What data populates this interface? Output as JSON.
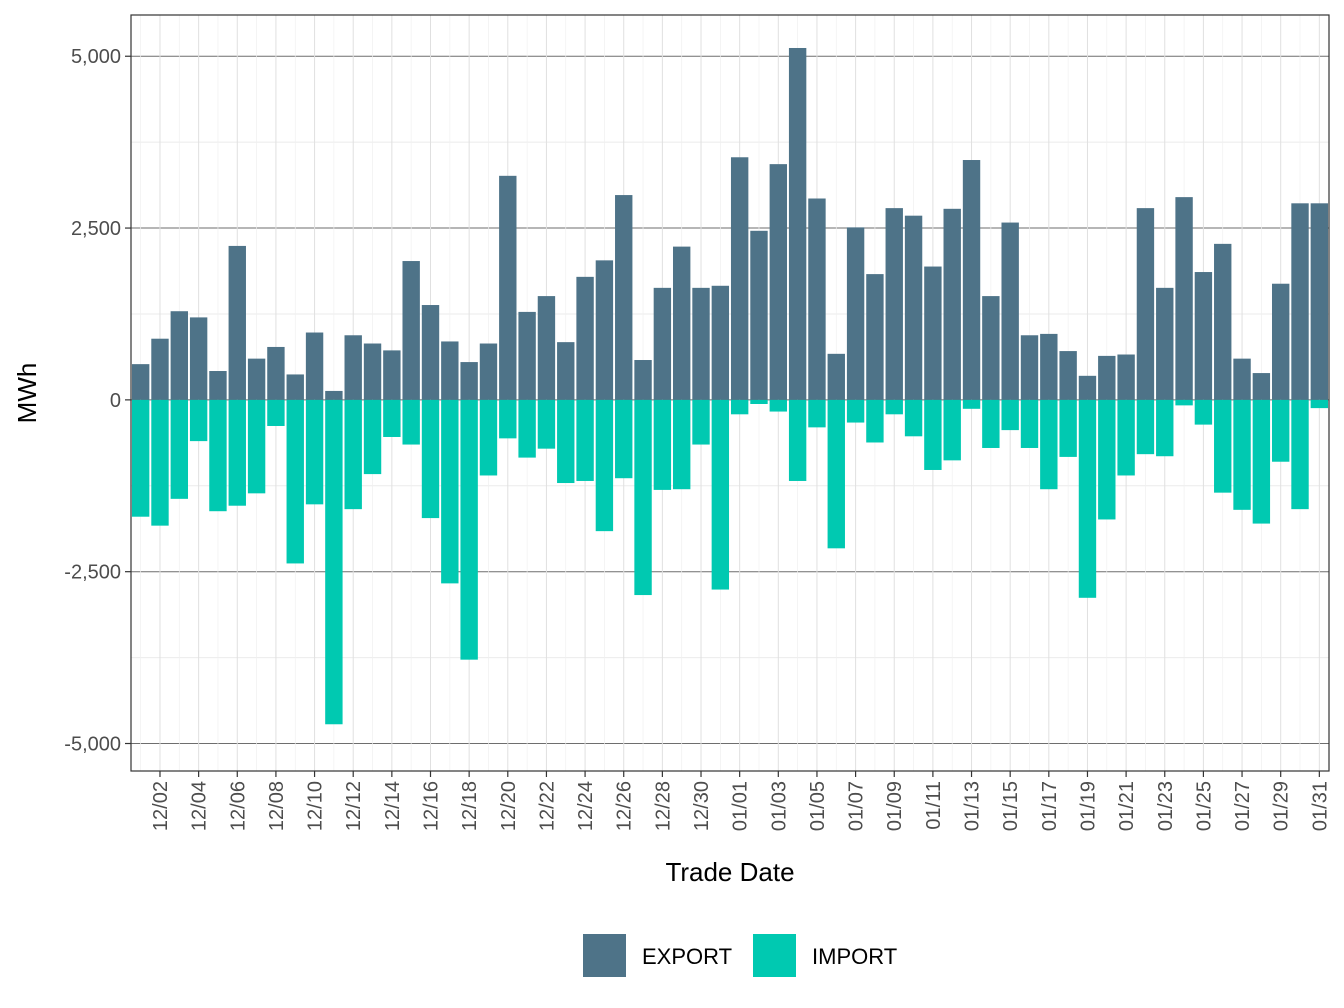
{
  "chart_data": {
    "type": "bar",
    "stacked": "diverging",
    "xlabel": "Trade Date",
    "ylabel": "MWh",
    "ylim": [
      -5400,
      5600
    ],
    "yticks": [
      -5000,
      -2500,
      0,
      2500,
      5000
    ],
    "ytick_labels": [
      "-5,000",
      "-2,500",
      "0",
      "2,500",
      "5,000"
    ],
    "categories": [
      "12/01",
      "12/02",
      "12/03",
      "12/04",
      "12/05",
      "12/06",
      "12/07",
      "12/08",
      "12/09",
      "12/10",
      "12/11",
      "12/12",
      "12/13",
      "12/14",
      "12/15",
      "12/16",
      "12/17",
      "12/18",
      "12/19",
      "12/20",
      "12/21",
      "12/22",
      "12/23",
      "12/24",
      "12/25",
      "12/26",
      "12/27",
      "12/28",
      "12/29",
      "12/30",
      "12/31",
      "01/01",
      "01/02",
      "01/03",
      "01/04",
      "01/05",
      "01/06",
      "01/07",
      "01/08",
      "01/09",
      "01/10",
      "01/11",
      "01/12",
      "01/13",
      "01/14",
      "01/15",
      "01/16",
      "01/17",
      "01/18",
      "01/19",
      "01/20",
      "01/21",
      "01/22",
      "01/23",
      "01/24",
      "01/25",
      "01/26",
      "01/27",
      "01/28",
      "01/29",
      "01/30",
      "01/31"
    ],
    "xtick_labels": [
      "12/02",
      "12/04",
      "12/06",
      "12/08",
      "12/10",
      "12/12",
      "12/14",
      "12/16",
      "12/18",
      "12/20",
      "12/22",
      "12/24",
      "12/26",
      "12/28",
      "12/30",
      "01/01",
      "01/03",
      "01/05",
      "01/07",
      "01/09",
      "01/11",
      "01/13",
      "01/15",
      "01/17",
      "01/19",
      "01/21",
      "01/23",
      "01/25",
      "01/27",
      "01/29",
      "01/31"
    ],
    "series": [
      {
        "name": "EXPORT",
        "color": "#4e7388",
        "values": [
          520,
          890,
          1290,
          1200,
          420,
          2240,
          600,
          770,
          370,
          980,
          130,
          940,
          820,
          720,
          2020,
          1380,
          850,
          550,
          820,
          3260,
          1280,
          1510,
          840,
          1790,
          2030,
          2980,
          580,
          1630,
          2230,
          1630,
          1660,
          3530,
          2460,
          3430,
          5120,
          2930,
          670,
          2510,
          1830,
          2790,
          2680,
          1940,
          2780,
          3490,
          1510,
          2580,
          940,
          960,
          710,
          350,
          640,
          660,
          2790,
          1630,
          2950,
          1860,
          2270,
          600,
          390,
          1690,
          2860,
          2860
        ]
      },
      {
        "name": "IMPORT",
        "color": "#00c9b1",
        "values": [
          -1700,
          -1830,
          -1440,
          -600,
          -1620,
          -1540,
          -1360,
          -380,
          -2380,
          -1520,
          -4720,
          -1590,
          -1080,
          -540,
          -650,
          -1720,
          -2670,
          -3780,
          -1100,
          -560,
          -840,
          -710,
          -1210,
          -1180,
          -1910,
          -1140,
          -2840,
          -1310,
          -1300,
          -650,
          -2760,
          -210,
          -60,
          -170,
          -1180,
          -400,
          -2160,
          -330,
          -620,
          -210,
          -530,
          -1020,
          -880,
          -130,
          -700,
          -440,
          -700,
          -1300,
          -830,
          -2880,
          -1740,
          -1100,
          -790,
          -820,
          -80,
          -360,
          -1350,
          -1600,
          -1800,
          -900,
          -1590,
          -120
        ]
      }
    ],
    "legend": {
      "position": "bottom",
      "items": [
        "EXPORT",
        "IMPORT"
      ]
    },
    "grid": true
  }
}
